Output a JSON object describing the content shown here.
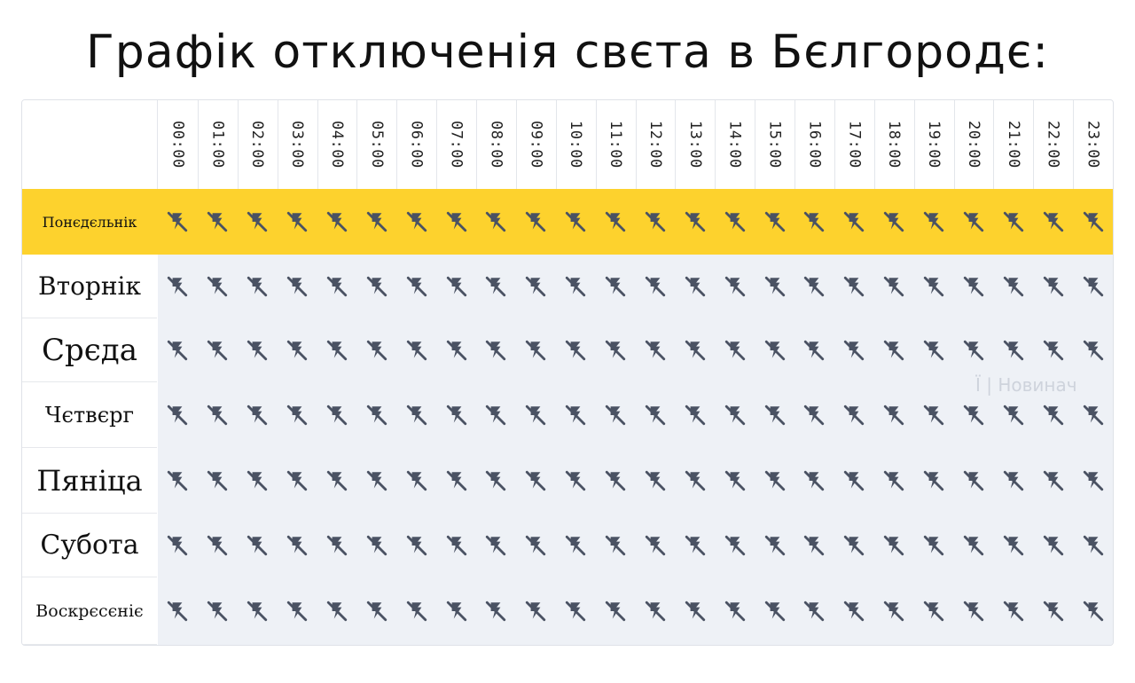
{
  "title": "Графік отключенія свєта в Бєлгородє:",
  "hours": [
    "00:00",
    "01:00",
    "02:00",
    "03:00",
    "04:00",
    "05:00",
    "06:00",
    "07:00",
    "08:00",
    "09:00",
    "10:00",
    "11:00",
    "12:00",
    "13:00",
    "14:00",
    "15:00",
    "16:00",
    "17:00",
    "18:00",
    "19:00",
    "20:00",
    "21:00",
    "22:00",
    "23:00"
  ],
  "days": [
    {
      "label": "Понєдєльнік",
      "highlight": true
    },
    {
      "label": "Вторнік",
      "highlight": false
    },
    {
      "label": "Срєда",
      "highlight": false
    },
    {
      "label": "Чєтвєрг",
      "highlight": false
    },
    {
      "label": "Пяніца",
      "highlight": false
    },
    {
      "label": "Субота",
      "highlight": false
    },
    {
      "label": "Воскрєсєніє",
      "highlight": false
    }
  ],
  "cell_icon": "power-off-icon",
  "watermark": "Ї | Новинач",
  "colors": {
    "highlight": "#fdd22d",
    "icon": "#4a5263",
    "row_bg": "#eef1f6"
  }
}
